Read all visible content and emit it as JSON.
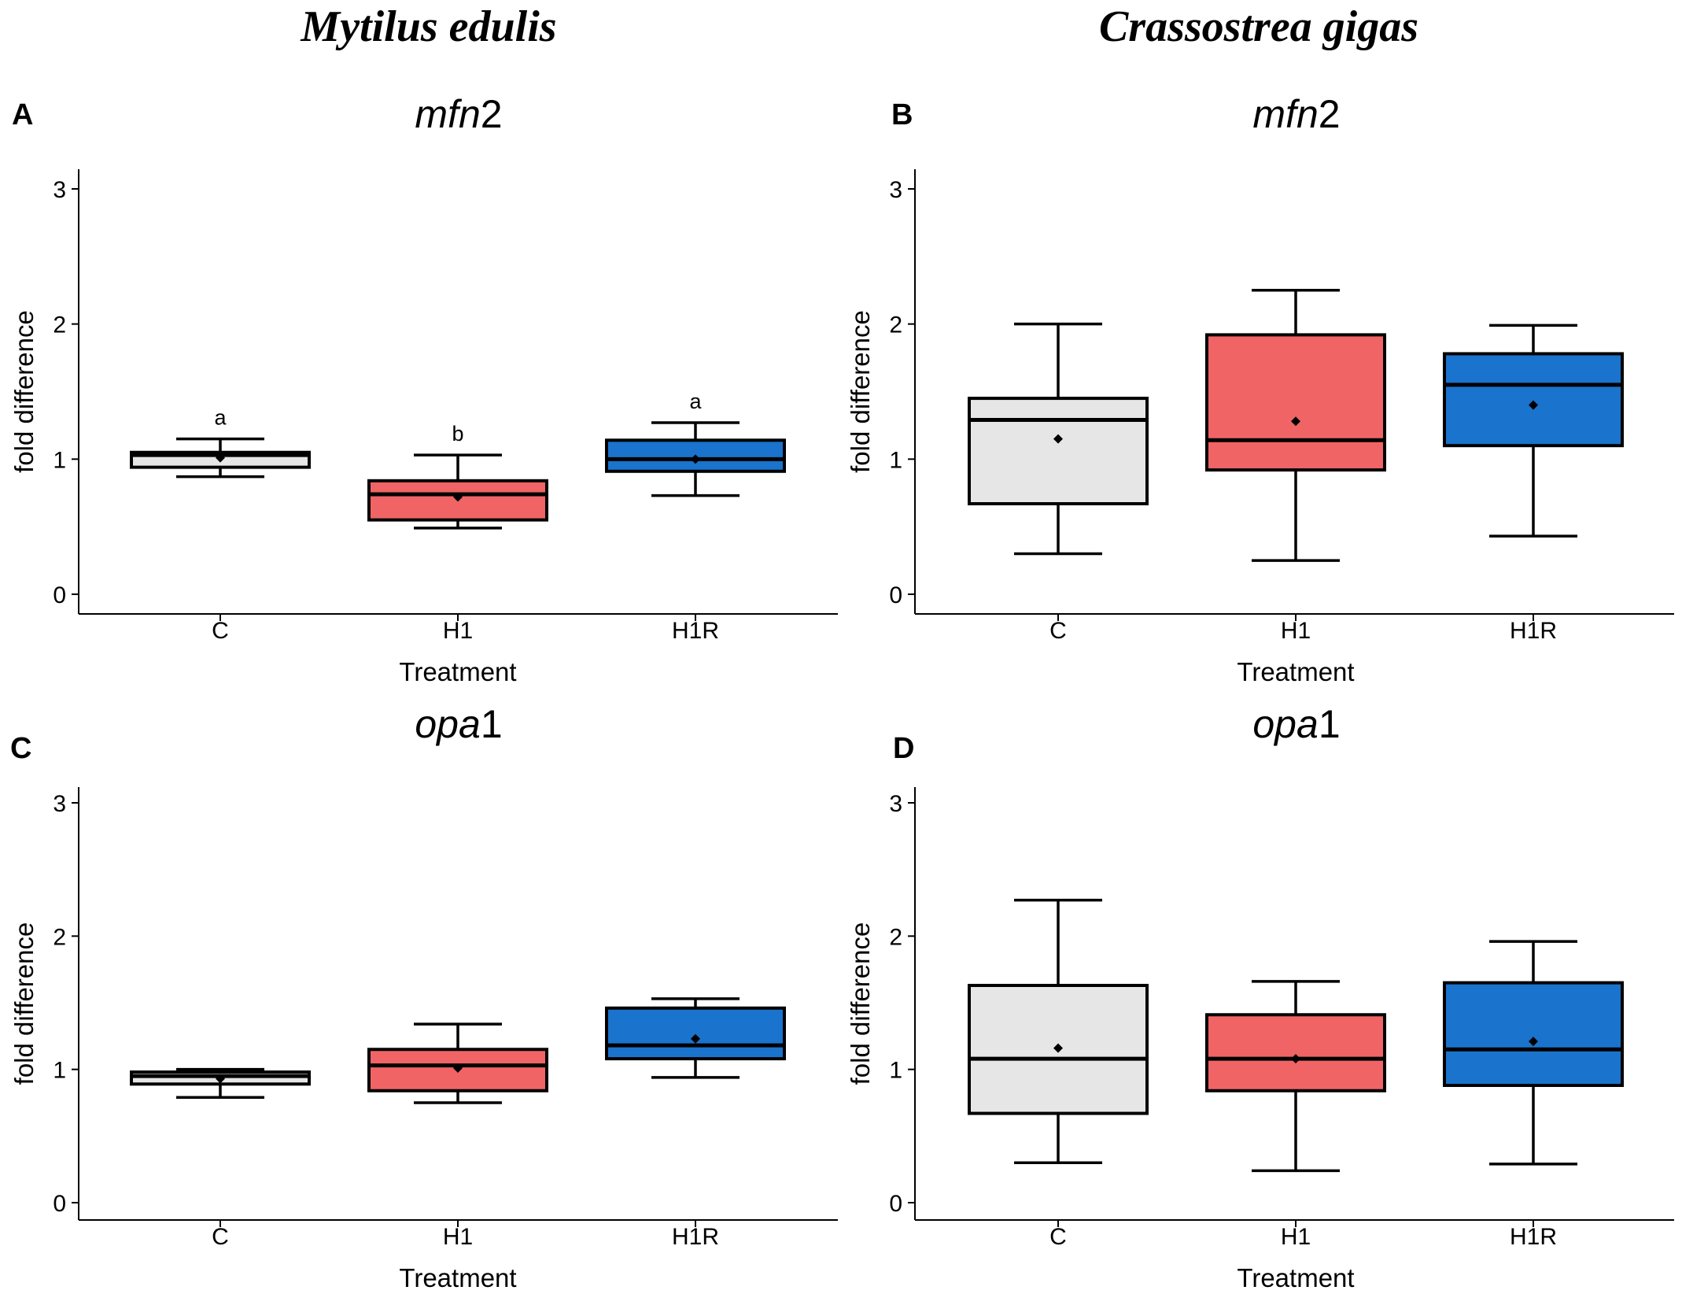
{
  "species": [
    "Mytilus edulis",
    "Crassostrea gigas"
  ],
  "chart_data": [
    {
      "panel": "A",
      "type": "boxplot",
      "title": "mfn2",
      "title_italic": "mfn",
      "title_plain": "2",
      "species": "Mytilus edulis",
      "xlabel": "Treatment",
      "ylabel": "fold difference",
      "ylim": [
        -0.15,
        3.1
      ],
      "yticks": [
        0,
        1,
        2,
        3
      ],
      "categories": [
        "C",
        "H1",
        "H1R"
      ],
      "colors": [
        "#e6e6e6",
        "#f06466",
        "#1a73cc"
      ],
      "boxes": [
        {
          "category": "C",
          "min": 0.87,
          "q1": 0.94,
          "median": 1.03,
          "q3": 1.05,
          "max": 1.15,
          "mean": 1.01,
          "label": "a"
        },
        {
          "category": "H1",
          "min": 0.49,
          "q1": 0.55,
          "median": 0.74,
          "q3": 0.84,
          "max": 1.03,
          "mean": 0.72,
          "label": "b"
        },
        {
          "category": "H1R",
          "min": 0.73,
          "q1": 0.91,
          "median": 1.0,
          "q3": 1.14,
          "max": 1.27,
          "mean": 1.0,
          "label": "a"
        }
      ]
    },
    {
      "panel": "B",
      "type": "boxplot",
      "title": "mfn2",
      "title_italic": "mfn",
      "title_plain": "2",
      "species": "Crassostrea gigas",
      "xlabel": "Treatment",
      "ylabel": "fold difference",
      "ylim": [
        -0.15,
        3.1
      ],
      "yticks": [
        0,
        1,
        2,
        3
      ],
      "categories": [
        "C",
        "H1",
        "H1R"
      ],
      "colors": [
        "#e6e6e6",
        "#f06466",
        "#1a73cc"
      ],
      "boxes": [
        {
          "category": "C",
          "min": 0.3,
          "q1": 0.67,
          "median": 1.29,
          "q3": 1.45,
          "max": 2.0,
          "mean": 1.15,
          "label": ""
        },
        {
          "category": "H1",
          "min": 0.25,
          "q1": 0.92,
          "median": 1.14,
          "q3": 1.92,
          "max": 2.25,
          "mean": 1.28,
          "label": ""
        },
        {
          "category": "H1R",
          "min": 0.43,
          "q1": 1.1,
          "median": 1.55,
          "q3": 1.78,
          "max": 1.99,
          "mean": 1.4,
          "label": ""
        }
      ]
    },
    {
      "panel": "C",
      "type": "boxplot",
      "title": "opa1",
      "title_italic": "opa",
      "title_plain": "1",
      "species": "Mytilus edulis",
      "xlabel": "Treatment",
      "ylabel": "fold difference",
      "ylim": [
        -0.15,
        3.1
      ],
      "yticks": [
        0,
        1,
        2,
        3
      ],
      "categories": [
        "C",
        "H1",
        "H1R"
      ],
      "colors": [
        "#e6e6e6",
        "#f06466",
        "#1a73cc"
      ],
      "boxes": [
        {
          "category": "C",
          "min": 0.79,
          "q1": 0.89,
          "median": 0.95,
          "q3": 0.98,
          "max": 1.0,
          "mean": 0.93,
          "label": ""
        },
        {
          "category": "H1",
          "min": 0.75,
          "q1": 0.84,
          "median": 1.03,
          "q3": 1.15,
          "max": 1.34,
          "mean": 1.01,
          "label": ""
        },
        {
          "category": "H1R",
          "min": 0.94,
          "q1": 1.08,
          "median": 1.18,
          "q3": 1.46,
          "max": 1.53,
          "mean": 1.23,
          "label": ""
        }
      ]
    },
    {
      "panel": "D",
      "type": "boxplot",
      "title": "opa1",
      "title_italic": "opa",
      "title_plain": "1",
      "species": "Crassostrea gigas",
      "xlabel": "Treatment",
      "ylabel": "fold difference",
      "ylim": [
        -0.15,
        3.1
      ],
      "yticks": [
        0,
        1,
        2,
        3
      ],
      "categories": [
        "C",
        "H1",
        "H1R"
      ],
      "colors": [
        "#e6e6e6",
        "#f06466",
        "#1a73cc"
      ],
      "boxes": [
        {
          "category": "C",
          "min": 0.3,
          "q1": 0.67,
          "median": 1.08,
          "q3": 1.63,
          "max": 2.27,
          "mean": 1.16,
          "label": ""
        },
        {
          "category": "H1",
          "min": 0.24,
          "q1": 0.84,
          "median": 1.08,
          "q3": 1.41,
          "max": 1.66,
          "mean": 1.08,
          "label": ""
        },
        {
          "category": "H1R",
          "min": 0.29,
          "q1": 0.88,
          "median": 1.15,
          "q3": 1.65,
          "max": 1.96,
          "mean": 1.21,
          "label": ""
        }
      ]
    }
  ]
}
